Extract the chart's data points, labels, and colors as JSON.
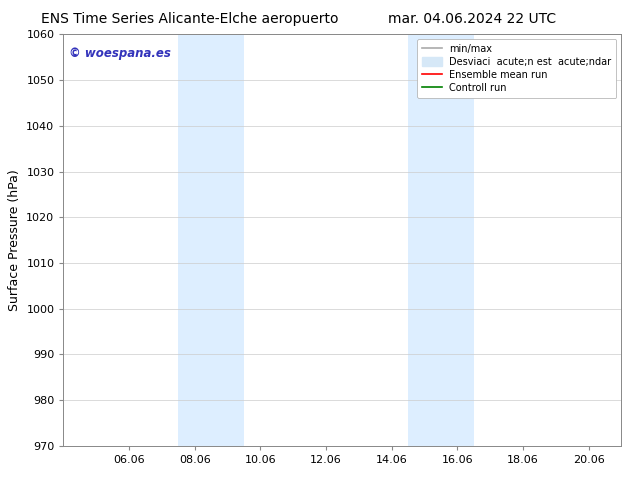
{
  "title_left": "ENS Time Series Alicante-Elche aeropuerto",
  "title_right": "mar. 04.06.2024 22 UTC",
  "ylabel": "Surface Pressure (hPa)",
  "ylim": [
    970,
    1060
  ],
  "yticks": [
    970,
    980,
    990,
    1000,
    1010,
    1020,
    1030,
    1040,
    1050,
    1060
  ],
  "x_tick_labels": [
    "06.06",
    "08.06",
    "10.06",
    "12.06",
    "14.06",
    "16.06",
    "18.06",
    "20.06"
  ],
  "x_tick_positions": [
    2,
    4,
    6,
    8,
    10,
    12,
    14,
    16
  ],
  "xlim": [
    0,
    17
  ],
  "shaded_regions": [
    {
      "x_start": 3.5,
      "x_end": 5.5,
      "color": "#ddeeff"
    },
    {
      "x_start": 10.5,
      "x_end": 12.5,
      "color": "#ddeeff"
    }
  ],
  "watermark_text": "© woespana.es",
  "watermark_color": "#3333bb",
  "legend_min_max_color": "#aaaaaa",
  "legend_std_color": "#d6e8f7",
  "legend_mean_color": "red",
  "legend_ctrl_color": "green",
  "bg_color": "#ffffff",
  "grid_color": "#cccccc",
  "title_fontsize": 10,
  "tick_fontsize": 8,
  "ylabel_fontsize": 9
}
